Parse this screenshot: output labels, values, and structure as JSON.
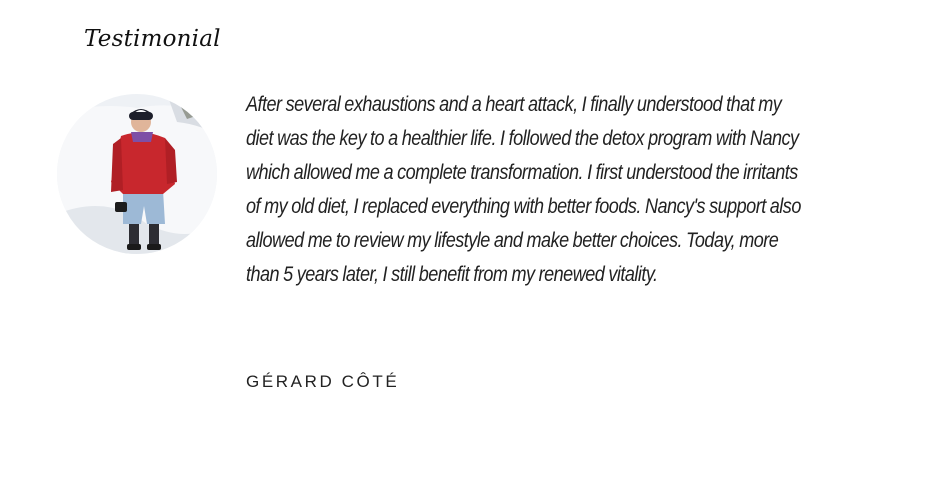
{
  "testimonial": {
    "label": "Testimonial",
    "quote": "After several exhaustions and a heart attack, I finally understood that my diet was the key to a healthier life. I followed the detox program with Nancy which allowed me a complete transformation. I first understood the irritants of my old diet, I replaced everything with better foods. Nancy's support also allowed me to review my lifestyle and make better choices. Today, more than 5 years later, I still benefit from my renewed vitality.",
    "author": "GÉRARD CÔTÉ"
  }
}
